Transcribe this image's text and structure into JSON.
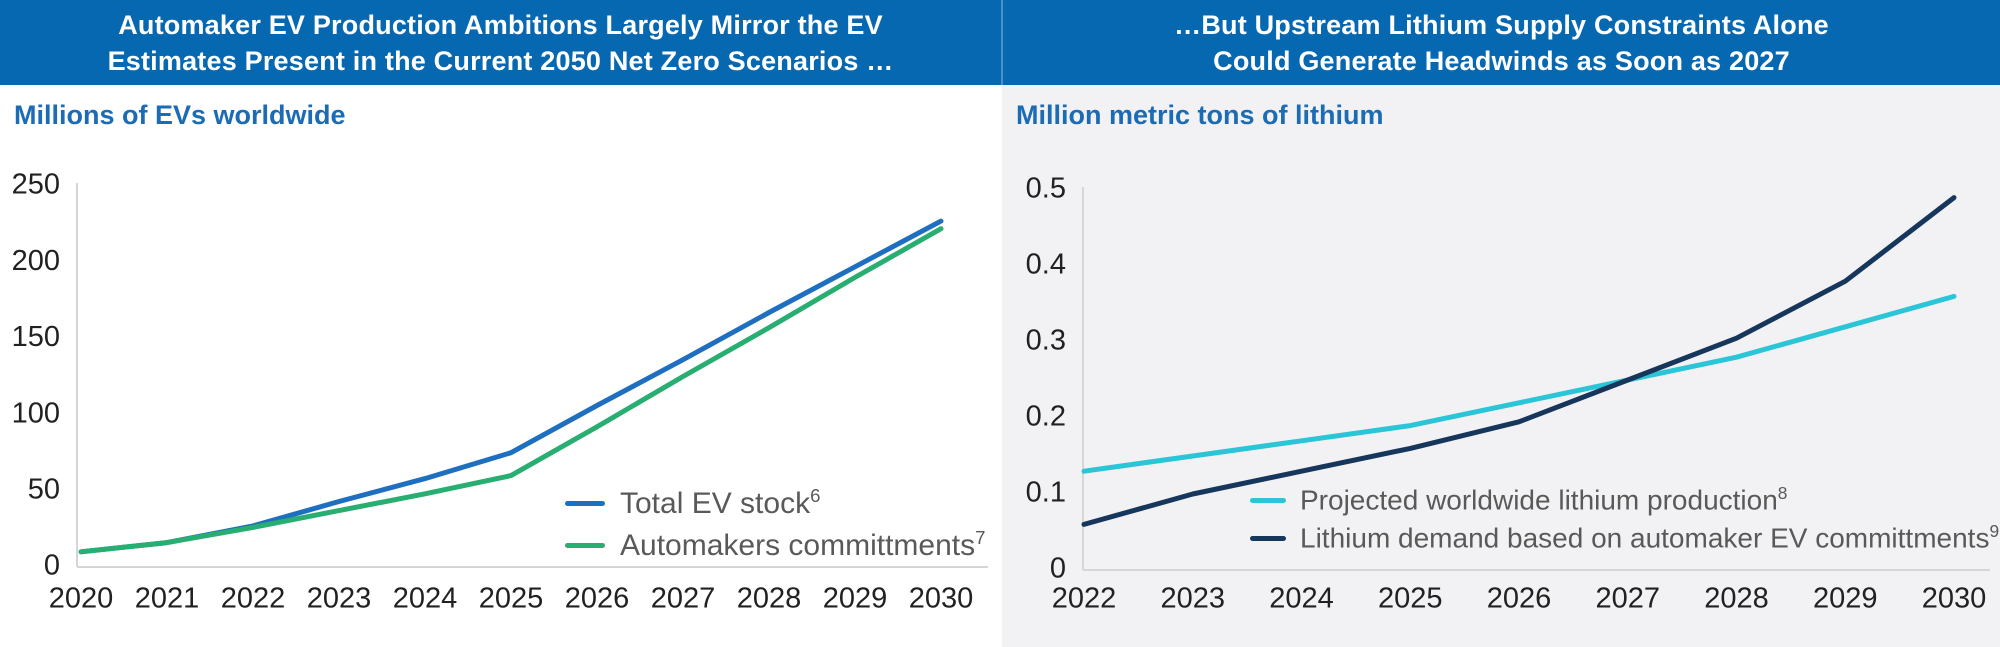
{
  "panels": [
    {
      "header_line1": "Automaker EV Production Ambitions Largely Mirror the EV",
      "header_line2": "Estimates Present in the Current 2050 Net Zero Scenarios …"
    },
    {
      "header_line1": "…But Upstream Lithium Supply Constraints Alone",
      "header_line2": "Could Generate Headwinds as Soon as 2027"
    }
  ],
  "colors": {
    "header_bg": "#0768B2",
    "header_divider": "#4C90C9",
    "subtitle_text": "#1B6BB5",
    "right_panel_bg": "#F2F2F4",
    "axis_line": "#D6D6D6",
    "tick_text": "#212121",
    "legend_text": "#595959"
  },
  "chart_data": [
    {
      "type": "line",
      "title": "Millions of EVs worldwide",
      "x": [
        2020,
        2021,
        2022,
        2023,
        2024,
        2025,
        2026,
        2027,
        2028,
        2029,
        2030
      ],
      "series": [
        {
          "name": "Total EV stock",
          "footnote": "6",
          "color": "#1F6FC0",
          "values": [
            10,
            16,
            27,
            43,
            58,
            75,
            106,
            136,
            167,
            197,
            227
          ]
        },
        {
          "name": "Automakers committments",
          "footnote": "7",
          "color": "#27AE70",
          "values": [
            10,
            16,
            26,
            37,
            48,
            60,
            92,
            125,
            157,
            190,
            222
          ]
        }
      ],
      "ylim": [
        0,
        250
      ],
      "yticks": [
        0,
        50,
        100,
        150,
        200,
        250
      ],
      "grid": false,
      "legend_position": "inside-bottom-right"
    },
    {
      "type": "line",
      "title": "Million metric tons of lithium",
      "x": [
        2022,
        2023,
        2024,
        2025,
        2026,
        2027,
        2028,
        2029,
        2030
      ],
      "series": [
        {
          "name": "Projected worldwide lithium production",
          "footnote": "8",
          "color": "#2BC5D8",
          "values": [
            0.13,
            0.15,
            0.17,
            0.19,
            0.22,
            0.25,
            0.28,
            0.32,
            0.36
          ]
        },
        {
          "name": "Lithium demand based on automaker EV committments",
          "footnote": "9",
          "color": "#16365C",
          "values": [
            0.06,
            0.1,
            0.13,
            0.16,
            0.195,
            0.25,
            0.305,
            0.38,
            0.49
          ]
        }
      ],
      "ylim": [
        0,
        0.5
      ],
      "yticks": [
        0,
        0.1,
        0.2,
        0.3,
        0.4,
        0.5
      ],
      "grid": false,
      "legend_position": "inside-bottom-right"
    }
  ]
}
